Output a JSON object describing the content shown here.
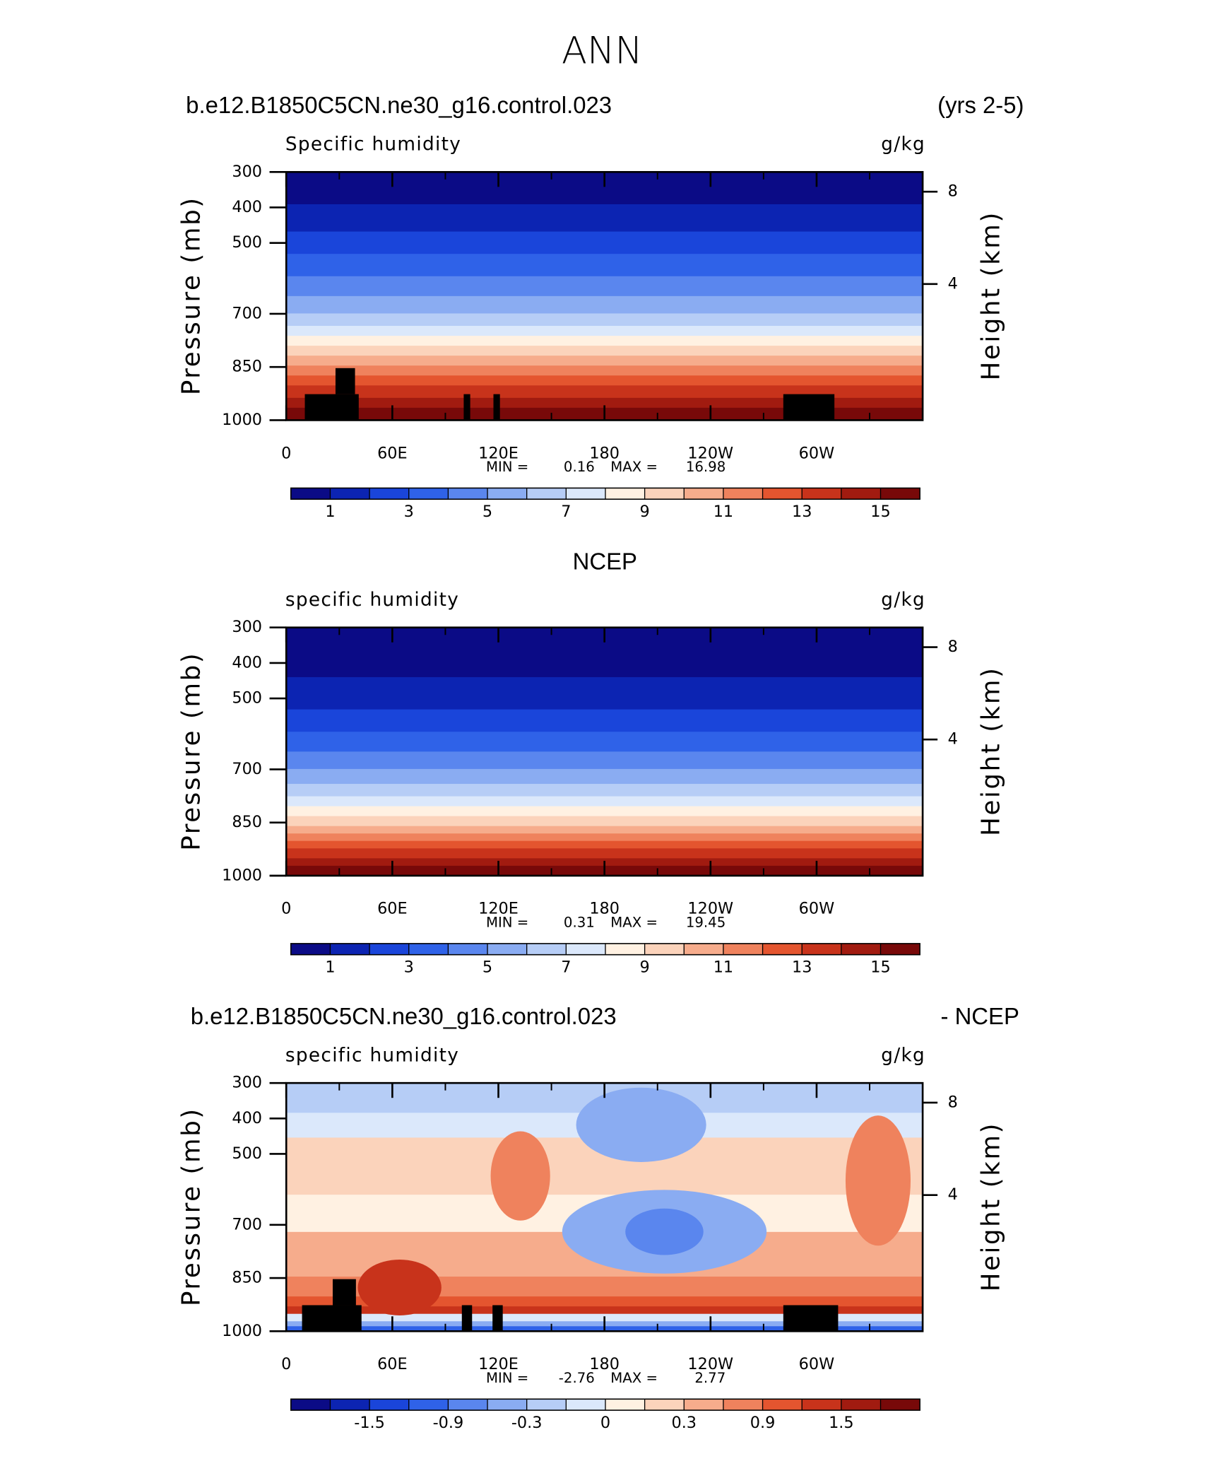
{
  "title": "ANN",
  "chart_data": [
    {
      "type": "contour",
      "left_title": "b.e12.B1850C5CN.ne30_g16.control.023",
      "right_title": "(yrs 2-5)",
      "subtitle": "Specific humidity",
      "units": "g/kg",
      "ylabel": "Pressure (mb)",
      "y2label": "Height (km)",
      "xlim": [
        0,
        360
      ],
      "xticks": [
        0,
        {
          "value": 60,
          "label": "60E"
        },
        {
          "value": 120,
          "label": "120E"
        },
        180,
        {
          "value": 240,
          "label": "120W"
        },
        {
          "value": 300,
          "label": "60W"
        }
      ],
      "xminorticks": [
        30,
        90,
        150,
        210,
        270,
        330
      ],
      "ylim": [
        1000,
        300
      ],
      "yticks": [
        300,
        400,
        500,
        700,
        850,
        1000
      ],
      "y2ticks": [
        8,
        4
      ],
      "min_label": "MIN =",
      "min": 0.16,
      "max_label": "MAX =",
      "max": 16.98,
      "colors": [
        "#0b0b86",
        "#0c24b2",
        "#1a45da",
        "#2f62e8",
        "#5a86ee",
        "#8aacf2",
        "#b6cdf6",
        "#dbe8fb",
        "#fff1e2",
        "#fbd3bb",
        "#f6ac8c",
        "#ef825d",
        "#e4552f",
        "#c8331b",
        "#a11b10",
        "#780909"
      ],
      "levels": [
        1,
        2,
        3,
        4,
        5,
        6,
        7,
        8,
        9,
        10,
        11,
        12,
        13,
        14,
        15
      ],
      "cticks": [
        1,
        3,
        5,
        7,
        9,
        11,
        13,
        15
      ]
    },
    {
      "type": "contour",
      "center_title": "NCEP",
      "subtitle": "specific humidity",
      "units": "g/kg",
      "ylabel": "Pressure (mb)",
      "y2label": "Height (km)",
      "xlim": [
        0,
        360
      ],
      "xticks": [
        0,
        {
          "value": 60,
          "label": "60E"
        },
        {
          "value": 120,
          "label": "120E"
        },
        180,
        {
          "value": 240,
          "label": "120W"
        },
        {
          "value": 300,
          "label": "60W"
        }
      ],
      "xminorticks": [
        30,
        90,
        150,
        210,
        270,
        330
      ],
      "ylim": [
        1000,
        300
      ],
      "yticks": [
        300,
        400,
        500,
        700,
        850,
        1000
      ],
      "y2ticks": [
        8,
        4
      ],
      "min_label": "MIN =",
      "min": 0.31,
      "max_label": "MAX =",
      "max": 19.45,
      "colors": [
        "#0b0b86",
        "#0c24b2",
        "#1a45da",
        "#2f62e8",
        "#5a86ee",
        "#8aacf2",
        "#b6cdf6",
        "#dbe8fb",
        "#fff1e2",
        "#fbd3bb",
        "#f6ac8c",
        "#ef825d",
        "#e4552f",
        "#c8331b",
        "#a11b10",
        "#780909"
      ],
      "levels": [
        1,
        2,
        3,
        4,
        5,
        6,
        7,
        8,
        9,
        10,
        11,
        12,
        13,
        14,
        15
      ],
      "cticks": [
        1,
        3,
        5,
        7,
        9,
        11,
        13,
        15
      ]
    },
    {
      "type": "contour",
      "left_title": "b.e12.B1850C5CN.ne30_g16.control.023",
      "right_title": "- NCEP",
      "subtitle": "specific humidity",
      "units": "g/kg",
      "ylabel": "Pressure (mb)",
      "y2label": "Height (km)",
      "xlim": [
        0,
        360
      ],
      "xticks": [
        0,
        {
          "value": 60,
          "label": "60E"
        },
        {
          "value": 120,
          "label": "120E"
        },
        180,
        {
          "value": 240,
          "label": "120W"
        },
        {
          "value": 300,
          "label": "60W"
        }
      ],
      "xminorticks": [
        30,
        90,
        150,
        210,
        270,
        330
      ],
      "ylim": [
        1000,
        300
      ],
      "yticks": [
        300,
        400,
        500,
        700,
        850,
        1000
      ],
      "y2ticks": [
        8,
        4
      ],
      "min_label": "MIN =",
      "min": -2.76,
      "max_label": "MAX =",
      "max": 2.77,
      "colors": [
        "#0b0b86",
        "#0c24b2",
        "#1a45da",
        "#2f62e8",
        "#5a86ee",
        "#8aacf2",
        "#b6cdf6",
        "#dbe8fb",
        "#fff1e2",
        "#fbd3bb",
        "#f6ac8c",
        "#ef825d",
        "#e4552f",
        "#c8331b",
        "#a11b10",
        "#780909"
      ],
      "levels": [
        -1.8,
        -1.5,
        -1.2,
        -0.9,
        -0.6,
        -0.3,
        -0.1,
        0,
        0.1,
        0.3,
        0.6,
        0.9,
        1.2,
        1.5,
        1.8
      ],
      "cticks": [
        -1.5,
        -0.9,
        -0.3,
        0,
        0.3,
        0.9,
        1.5
      ]
    }
  ]
}
